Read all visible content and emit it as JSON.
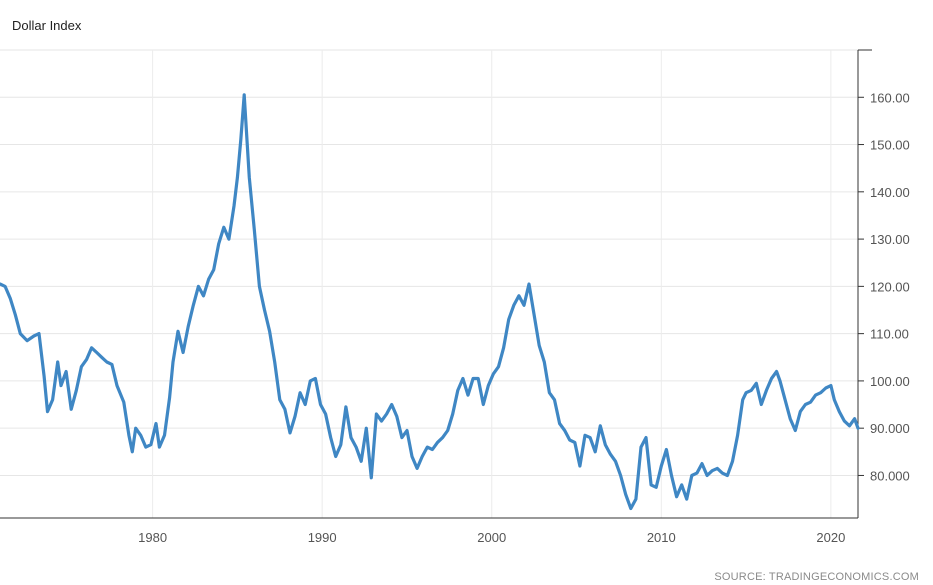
{
  "header": {
    "title": "Dollar Index"
  },
  "footer": {
    "source": "SOURCE: TRADINGECONOMICS.COM"
  },
  "chart_data": {
    "type": "line",
    "title": "Dollar Index",
    "xlabel": "",
    "ylabel": "",
    "xlim": [
      1971.0,
      2021.6
    ],
    "ylim": [
      71,
      170
    ],
    "x_ticks": [
      1980,
      1990,
      2000,
      2010,
      2020
    ],
    "x_tick_labels": [
      "1980",
      "1990",
      "2000",
      "2010",
      "2020"
    ],
    "y_ticks": [
      80,
      90,
      100,
      110,
      120,
      130,
      140,
      150,
      160
    ],
    "y_tick_labels": [
      "80.000",
      "90.000",
      "100.00",
      "110.00",
      "120.00",
      "130.00",
      "140.00",
      "150.00",
      "160.00"
    ],
    "grid": true,
    "line_color": "#3f87c4",
    "series": [
      {
        "x": [
          1971.0,
          1971.3,
          1971.6,
          1971.9,
          1972.2,
          1972.6,
          1973.0,
          1973.3,
          1973.6,
          1973.8,
          1974.1,
          1974.4,
          1974.6,
          1974.9,
          1975.2,
          1975.5,
          1975.8,
          1976.1,
          1976.4,
          1976.7,
          1977.0,
          1977.3,
          1977.6,
          1977.9,
          1978.3,
          1978.6,
          1978.8,
          1979.0,
          1979.3,
          1979.6,
          1979.9,
          1980.2,
          1980.4,
          1980.7,
          1981.0,
          1981.2,
          1981.5,
          1981.8,
          1982.1,
          1982.4,
          1982.7,
          1983.0,
          1983.3,
          1983.6,
          1983.9,
          1984.2,
          1984.5,
          1984.8,
          1985.0,
          1985.2,
          1985.4,
          1985.7,
          1986.0,
          1986.3,
          1986.6,
          1986.9,
          1987.2,
          1987.5,
          1987.8,
          1988.1,
          1988.4,
          1988.7,
          1989.0,
          1989.3,
          1989.6,
          1989.9,
          1990.2,
          1990.5,
          1990.8,
          1991.1,
          1991.4,
          1991.7,
          1992.0,
          1992.3,
          1992.6,
          1992.9,
          1993.2,
          1993.5,
          1993.8,
          1994.1,
          1994.4,
          1994.7,
          1995.0,
          1995.3,
          1995.6,
          1995.9,
          1996.2,
          1996.5,
          1996.8,
          1997.1,
          1997.4,
          1997.7,
          1998.0,
          1998.3,
          1998.6,
          1998.9,
          1999.2,
          1999.5,
          1999.8,
          2000.1,
          2000.4,
          2000.7,
          2001.0,
          2001.3,
          2001.6,
          2001.9,
          2002.2,
          2002.5,
          2002.8,
          2003.1,
          2003.4,
          2003.7,
          2004.0,
          2004.3,
          2004.6,
          2004.9,
          2005.2,
          2005.5,
          2005.8,
          2006.1,
          2006.4,
          2006.7,
          2007.0,
          2007.3,
          2007.6,
          2007.9,
          2008.2,
          2008.5,
          2008.8,
          2009.1,
          2009.4,
          2009.7,
          2010.0,
          2010.3,
          2010.6,
          2010.9,
          2011.2,
          2011.5,
          2011.8,
          2012.1,
          2012.4,
          2012.7,
          2013.0,
          2013.3,
          2013.6,
          2013.9,
          2014.2,
          2014.5,
          2014.8,
          2015.0,
          2015.3,
          2015.6,
          2015.9,
          2016.2,
          2016.5,
          2016.8,
          2017.0,
          2017.3,
          2017.6,
          2017.9,
          2018.2,
          2018.5,
          2018.8,
          2019.1,
          2019.4,
          2019.7,
          2020.0,
          2020.2,
          2020.5,
          2020.8,
          2021.1,
          2021.4,
          2021.6
        ],
        "values": [
          120.5,
          120.0,
          117.5,
          114.0,
          110.0,
          108.5,
          109.5,
          110.0,
          101.0,
          93.5,
          96.0,
          104.0,
          99.0,
          102.0,
          94.0,
          98.0,
          103.0,
          104.5,
          107.0,
          106.0,
          105.0,
          104.0,
          103.5,
          99.0,
          95.5,
          88.5,
          85.0,
          90.0,
          88.5,
          86.0,
          86.5,
          91.0,
          86.0,
          88.5,
          96.5,
          104.0,
          110.5,
          106.0,
          111.5,
          116.0,
          120.0,
          118.0,
          121.5,
          123.5,
          129.0,
          132.5,
          130.0,
          137.0,
          143.0,
          151.0,
          160.5,
          143.0,
          132.0,
          120.0,
          115.0,
          110.5,
          104.0,
          96.0,
          94.0,
          89.0,
          92.5,
          97.5,
          95.0,
          100.0,
          100.5,
          95.0,
          93.0,
          88.0,
          84.0,
          86.5,
          94.5,
          88.0,
          86.0,
          83.0,
          90.0,
          79.5,
          93.0,
          91.5,
          93.0,
          95.0,
          92.5,
          88.0,
          89.5,
          84.0,
          81.5,
          84.0,
          86.0,
          85.5,
          87.0,
          88.0,
          89.5,
          93.0,
          98.0,
          100.5,
          97.0,
          100.5,
          100.5,
          95.0,
          99.0,
          101.5,
          103.0,
          107.0,
          113.0,
          116.0,
          118.0,
          116.0,
          120.5,
          114.0,
          107.5,
          104.0,
          97.5,
          96.0,
          91.0,
          89.5,
          87.5,
          87.0,
          82.0,
          88.5,
          88.0,
          85.0,
          90.5,
          86.5,
          84.5,
          83.0,
          80.0,
          76.0,
          73.0,
          75.0,
          86.0,
          88.0,
          78.0,
          77.5,
          82.0,
          85.5,
          80.0,
          75.5,
          78.0,
          75.0,
          80.0,
          80.5,
          82.5,
          80.0,
          81.0,
          81.5,
          80.5,
          80.0,
          83.0,
          88.5,
          96.0,
          97.5,
          98.0,
          99.5,
          95.0,
          98.0,
          100.5,
          102.0,
          100.0,
          96.0,
          92.0,
          89.5,
          93.5,
          95.0,
          95.5,
          97.0,
          97.5,
          98.5,
          99.0,
          96.0,
          93.5,
          91.5,
          90.5,
          92.0,
          90.0
        ]
      }
    ]
  }
}
